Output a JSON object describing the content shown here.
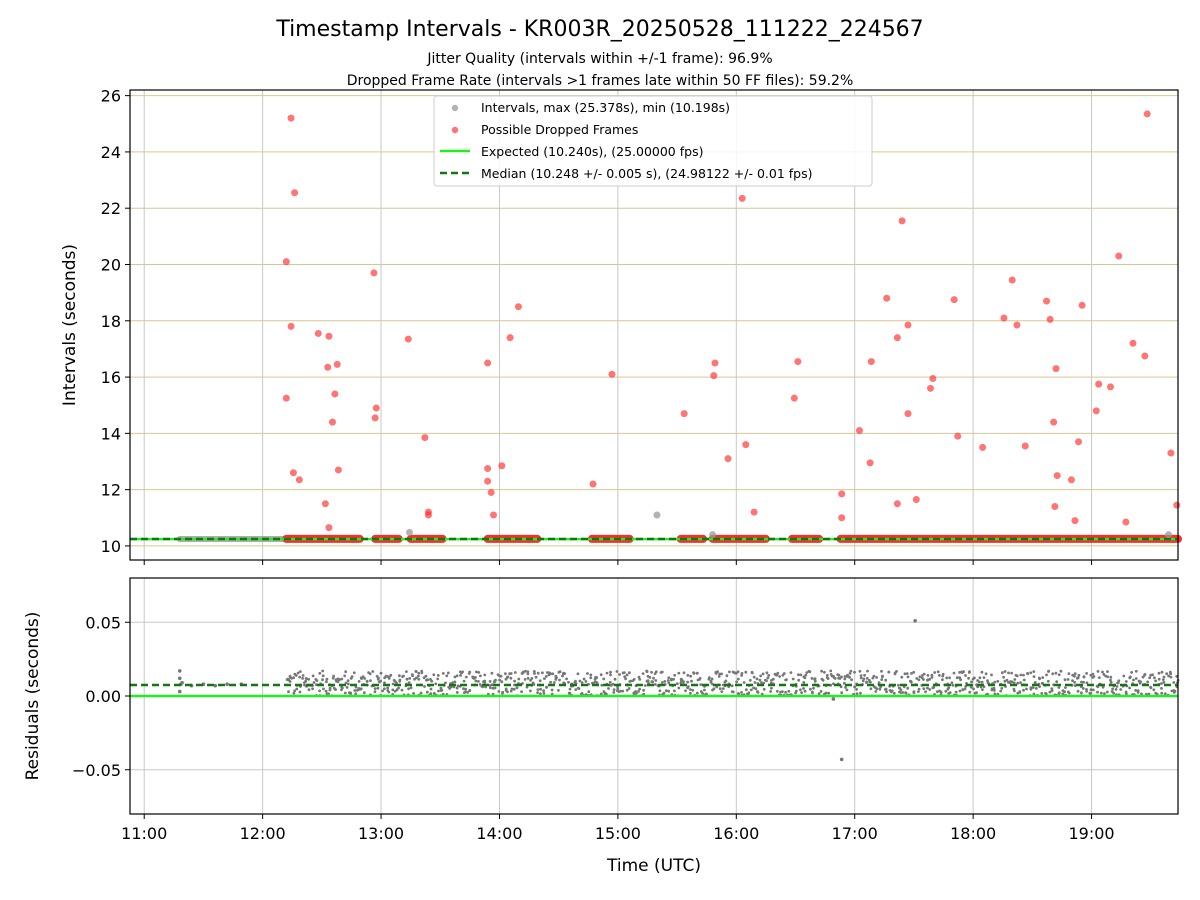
{
  "chart_data": {
    "type": "scatter",
    "title": "Timestamp Intervals - KR003R_20250528_111222_224567",
    "subtitle_lines": [
      "Jitter Quality (intervals within +/-1 frame): 96.9%",
      "Dropped Frame Rate (intervals >1 frames late within 50 FF files): 59.2%"
    ],
    "xlabel": "Time (UTC)",
    "x_ticks": [
      "11:00",
      "12:00",
      "13:00",
      "14:00",
      "15:00",
      "16:00",
      "17:00",
      "18:00",
      "19:00"
    ],
    "x_range_hours": [
      10.88,
      19.73
    ],
    "panels": [
      {
        "id": "intervals",
        "ylabel": "Intervals (seconds)",
        "ylim": [
          9.5,
          26.2
        ],
        "y_ticks": [
          "10",
          "12",
          "14",
          "16",
          "18",
          "20",
          "22",
          "24",
          "26"
        ],
        "grid": "on",
        "legend_position": "upper center",
        "legend": [
          "Intervals, max (25.378s), min (10.198s)",
          "Possible Dropped Frames",
          "Expected (10.240s), (25.00000 fps)",
          "Median (10.248 +/- 0.005 s), (24.98122 +/- 0.01 fps)"
        ],
        "expected_value": 10.24,
        "median_value": 10.248,
        "baseline_segments_hours": [
          [
            11.3,
            12.2
          ],
          [
            12.2,
            12.82
          ],
          [
            12.95,
            13.15
          ],
          [
            13.25,
            13.52
          ],
          [
            13.9,
            14.32
          ],
          [
            14.78,
            15.1
          ],
          [
            15.53,
            15.72
          ],
          [
            15.8,
            16.25
          ],
          [
            16.47,
            16.7
          ],
          [
            16.88,
            19.73
          ]
        ],
        "dropped_segments_hours": [
          [
            12.2,
            12.82
          ],
          [
            12.95,
            13.15
          ],
          [
            13.25,
            13.52
          ],
          [
            13.9,
            14.32
          ],
          [
            14.78,
            15.1
          ],
          [
            15.53,
            15.72
          ],
          [
            15.8,
            16.25
          ],
          [
            16.47,
            16.7
          ],
          [
            16.88,
            19.73
          ]
        ],
        "series": [
          {
            "name": "Intervals, max (25.378s), min (10.198s)",
            "color": "#999999",
            "points": [
              [
                13.24,
                10.48
              ],
              [
                15.33,
                11.1
              ],
              [
                15.8,
                10.4
              ],
              [
                19.65,
                10.4
              ]
            ]
          },
          {
            "name": "Possible Dropped Frames",
            "color": "#ff2b2b",
            "points": [
              [
                12.24,
                25.2
              ],
              [
                12.27,
                22.55
              ],
              [
                12.2,
                20.1
              ],
              [
                12.24,
                17.8
              ],
              [
                12.2,
                15.25
              ],
              [
                12.26,
                12.6
              ],
              [
                12.31,
                12.35
              ],
              [
                12.47,
                17.55
              ],
              [
                12.56,
                17.45
              ],
              [
                12.55,
                16.35
              ],
              [
                12.63,
                16.45
              ],
              [
                12.61,
                15.4
              ],
              [
                12.59,
                14.4
              ],
              [
                12.64,
                12.7
              ],
              [
                12.53,
                11.5
              ],
              [
                12.56,
                10.65
              ],
              [
                12.94,
                19.7
              ],
              [
                12.96,
                14.9
              ],
              [
                12.95,
                14.55
              ],
              [
                13.23,
                17.35
              ],
              [
                13.37,
                13.85
              ],
              [
                13.4,
                11.2
              ],
              [
                13.4,
                11.1
              ],
              [
                13.9,
                16.5
              ],
              [
                13.9,
                12.75
              ],
              [
                13.9,
                12.3
              ],
              [
                13.93,
                11.9
              ],
              [
                13.95,
                11.1
              ],
              [
                14.02,
                12.85
              ],
              [
                14.09,
                17.4
              ],
              [
                14.16,
                18.5
              ],
              [
                14.79,
                12.2
              ],
              [
                14.95,
                16.1
              ],
              [
                15.56,
                14.7
              ],
              [
                15.82,
                16.5
              ],
              [
                15.81,
                16.05
              ],
              [
                15.93,
                13.1
              ],
              [
                16.05,
                22.35
              ],
              [
                16.08,
                13.6
              ],
              [
                16.15,
                11.2
              ],
              [
                16.49,
                15.25
              ],
              [
                16.52,
                16.55
              ],
              [
                16.89,
                11.85
              ],
              [
                16.89,
                11.0
              ],
              [
                17.04,
                14.1
              ],
              [
                17.14,
                16.55
              ],
              [
                17.13,
                12.95
              ],
              [
                17.27,
                18.8
              ],
              [
                17.36,
                17.4
              ],
              [
                17.36,
                11.5
              ],
              [
                17.4,
                21.55
              ],
              [
                17.45,
                17.85
              ],
              [
                17.45,
                14.7
              ],
              [
                17.52,
                11.65
              ],
              [
                17.64,
                15.6
              ],
              [
                17.66,
                15.95
              ],
              [
                17.84,
                18.75
              ],
              [
                17.87,
                13.9
              ],
              [
                18.08,
                13.5
              ],
              [
                18.26,
                18.1
              ],
              [
                18.33,
                19.45
              ],
              [
                18.37,
                17.85
              ],
              [
                18.44,
                13.55
              ],
              [
                18.62,
                18.7
              ],
              [
                18.65,
                18.05
              ],
              [
                18.7,
                16.3
              ],
              [
                18.68,
                14.4
              ],
              [
                18.71,
                12.5
              ],
              [
                18.69,
                11.4
              ],
              [
                18.83,
                12.35
              ],
              [
                18.86,
                10.9
              ],
              [
                18.89,
                13.7
              ],
              [
                18.92,
                18.55
              ],
              [
                19.04,
                14.8
              ],
              [
                19.06,
                15.75
              ],
              [
                19.16,
                15.65
              ],
              [
                19.23,
                20.3
              ],
              [
                19.29,
                10.85
              ],
              [
                19.35,
                17.2
              ],
              [
                19.45,
                16.75
              ],
              [
                19.47,
                25.35
              ],
              [
                19.67,
                13.3
              ],
              [
                19.72,
                11.45
              ]
            ]
          }
        ]
      },
      {
        "id": "residuals",
        "ylabel": "Residuals (seconds)",
        "ylim": [
          -0.08,
          0.08
        ],
        "y_ticks": [
          "−0.05",
          "0.00",
          "0.05"
        ],
        "grid": "on",
        "expected_value": 0.0,
        "median_value": 0.0075,
        "band_hours": [
          12.2,
          19.73
        ],
        "band_range": [
          0.0,
          0.017
        ],
        "series": [
          {
            "name": "Residuals",
            "color": "#777777",
            "points": [
              [
                11.3,
                0.017
              ],
              [
                11.3,
                0.012
              ],
              [
                11.31,
                0.008
              ],
              [
                11.3,
                0.003
              ],
              [
                11.32,
                0.009
              ],
              [
                11.4,
                0.007
              ],
              [
                11.5,
                0.008
              ],
              [
                11.6,
                0.007
              ],
              [
                11.7,
                0.008
              ],
              [
                11.82,
                0.008
              ],
              [
                16.82,
                -0.002
              ],
              [
                16.89,
                -0.043
              ],
              [
                17.51,
                0.051
              ]
            ]
          }
        ]
      }
    ]
  },
  "colors": {
    "expected_line": "#22ee22",
    "median_line": "#117711",
    "dropped": "#ff2b2b",
    "intervals": "#999999",
    "hgrid_top": "#d9c68f",
    "grid": "#c8c8c8",
    "residual": "#777777"
  }
}
